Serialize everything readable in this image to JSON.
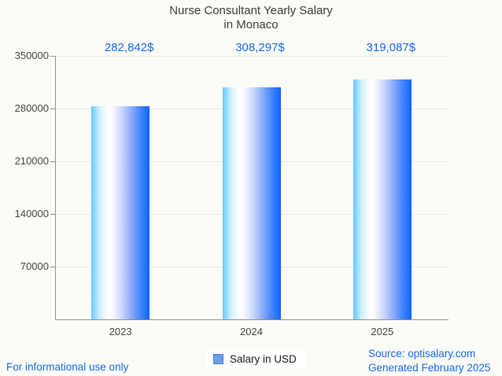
{
  "title": {
    "line1": "Nurse Consultant Yearly Salary",
    "line2": "in Monaco"
  },
  "chart_data": {
    "type": "bar",
    "title": "Nurse Consultant Yearly Salary in Monaco",
    "categories": [
      "2023",
      "2024",
      "2025"
    ],
    "values": [
      282842,
      308297,
      319087
    ],
    "value_labels": [
      "282,842$",
      "308,297$",
      "319,087$"
    ],
    "series": [
      {
        "name": "Salary in USD",
        "values": [
          282842,
          308297,
          319087
        ]
      }
    ],
    "xlabel": "",
    "ylabel": "",
    "ylim": [
      0,
      350000
    ],
    "yticks": [
      70000,
      140000,
      210000,
      280000,
      350000
    ],
    "ytick_labels": [
      "70000",
      "140000",
      "210000",
      "280000",
      "350000"
    ],
    "grid": true,
    "legend_position": "bottom-center",
    "bar_gradient": [
      "#66caff",
      "#ffffff",
      "#1165fb"
    ]
  },
  "legend": {
    "label": "Salary in USD",
    "swatch_color": "#68a0ee"
  },
  "footer": {
    "left": "For informational use only",
    "source": "Source: optisalary.com",
    "generated": "Generated February 2025"
  },
  "colors": {
    "background": "#fbfbf7",
    "accent_blue": "#1b6ce8",
    "title_text": "#3f3f3f",
    "axis_text": "#474747",
    "gridline": "#e8e8e4",
    "axis_line": "#909090"
  }
}
